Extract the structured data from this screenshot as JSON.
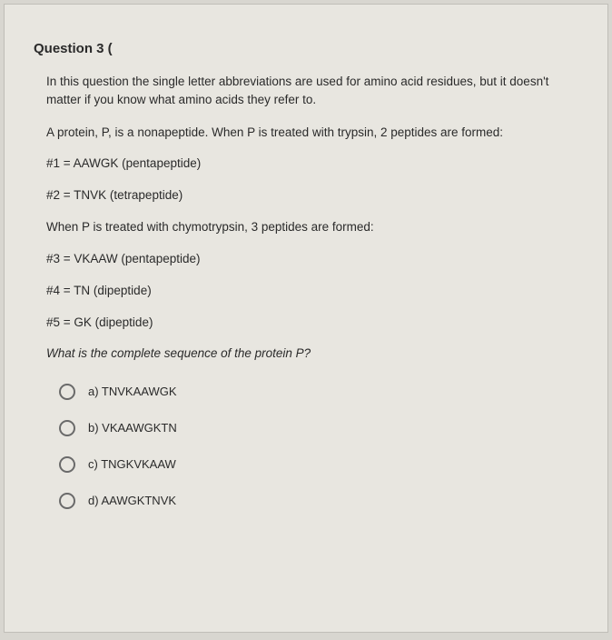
{
  "question": {
    "title": "Question 3 (",
    "intro": "In this question the single letter abbreviations are used for amino acid residues, but it doesn't matter if you know what amino acids they refer to.",
    "line1": "A protein, P, is a nonapeptide. When P is treated with trypsin, 2 peptides are formed:",
    "line2": "#1 = AAWGK (pentapeptide)",
    "line3": "#2 = TNVK (tetrapeptide)",
    "line4": "When P is treated with chymotrypsin, 3 peptides are formed:",
    "line5": "#3 = VKAAW (pentapeptide)",
    "line6": "#4 = TN (dipeptide)",
    "line7": "#5 = GK (dipeptide)",
    "prompt": "What is the complete sequence of the protein P?",
    "options": {
      "a": "a)  TNVKAAWGK",
      "b": "b)  VKAAWGKTN",
      "c": "c)  TNGKVKAAW",
      "d": "d)  AAWGKTNVK"
    }
  },
  "colors": {
    "page_bg": "#e8e6e0",
    "body_bg": "#d8d6d0",
    "text": "#2a2a2a",
    "radio_border": "#6a6a6a",
    "page_border": "#c0beb8"
  },
  "typography": {
    "title_size": 15,
    "body_size": 13.5,
    "option_size": 13
  }
}
